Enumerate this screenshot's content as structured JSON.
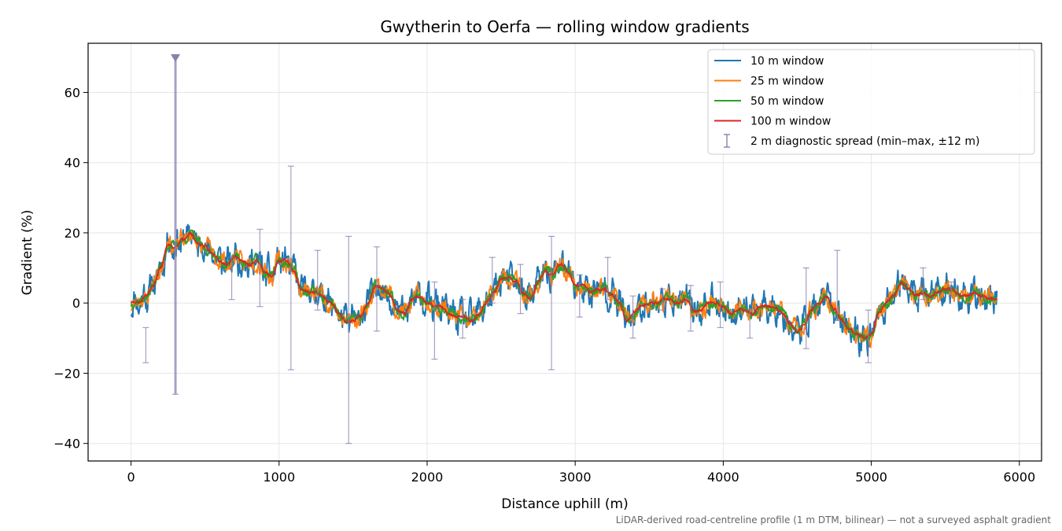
{
  "chart_data": {
    "type": "line",
    "title": "Gwytherin to Oerfa — rolling window gradients",
    "xlabel": "Distance uphill (m)",
    "ylabel": "Gradient (%)",
    "xlim": [
      -290,
      6150
    ],
    "ylim": [
      -45,
      74
    ],
    "xticks": [
      0,
      1000,
      2000,
      3000,
      4000,
      5000,
      6000
    ],
    "yticks": [
      -40,
      -20,
      0,
      20,
      40,
      60
    ],
    "xtick_labels": [
      "0",
      "1000",
      "2000",
      "3000",
      "4000",
      "5000",
      "6000"
    ],
    "ytick_labels": [
      "−40",
      "−20",
      "0",
      "20",
      "40",
      "60"
    ],
    "grid": true,
    "legend_position": "top-right",
    "footnote": "LiDAR-derived road-centreline profile (1 m DTM, bilinear) — not a surveyed asphalt gradient",
    "trend_x": [
      0,
      50,
      100,
      150,
      200,
      250,
      300,
      350,
      400,
      450,
      500,
      550,
      600,
      650,
      700,
      750,
      800,
      850,
      900,
      950,
      1000,
      1050,
      1100,
      1150,
      1200,
      1250,
      1300,
      1350,
      1400,
      1450,
      1500,
      1550,
      1600,
      1650,
      1700,
      1750,
      1800,
      1850,
      1900,
      1950,
      2000,
      2050,
      2100,
      2150,
      2200,
      2250,
      2300,
      2350,
      2400,
      2450,
      2500,
      2550,
      2600,
      2650,
      2700,
      2750,
      2800,
      2850,
      2900,
      2950,
      3000,
      3050,
      3100,
      3150,
      3200,
      3250,
      3300,
      3350,
      3400,
      3450,
      3500,
      3550,
      3600,
      3650,
      3700,
      3750,
      3800,
      3850,
      3900,
      3950,
      4000,
      4050,
      4100,
      4150,
      4200,
      4250,
      4300,
      4350,
      4400,
      4450,
      4500,
      4550,
      4600,
      4650,
      4700,
      4750,
      4800,
      4850,
      4900,
      4950,
      5000,
      5050,
      5100,
      5150,
      5200,
      5250,
      5300,
      5350,
      5400,
      5450,
      5500,
      5550,
      5600,
      5650,
      5700,
      5750,
      5800,
      5850
    ],
    "trend_y": [
      0,
      0,
      2,
      5,
      10,
      17,
      16,
      18,
      20,
      17,
      16,
      14,
      12,
      11,
      13,
      12,
      11,
      12,
      9,
      8,
      12,
      12,
      9,
      4,
      3,
      3,
      2,
      0,
      -3,
      -5,
      -5,
      -4,
      0,
      5,
      4,
      2,
      -2,
      -3,
      1,
      2,
      0,
      -1,
      -1,
      -3,
      -4,
      -4,
      -5,
      -3,
      0,
      3,
      7,
      7,
      6,
      3,
      1,
      6,
      9,
      8,
      11,
      9,
      5,
      5,
      3,
      4,
      4,
      2,
      0,
      -5,
      -3,
      -1,
      0,
      0,
      1,
      1,
      0,
      1,
      -2,
      -2,
      0,
      0,
      -1,
      -3,
      -2,
      -2,
      -3,
      -1,
      -1,
      -1,
      -3,
      -6,
      -8,
      -6,
      -2,
      0,
      2,
      -2,
      -5,
      -7,
      -9,
      -10,
      -9,
      -3,
      0,
      2,
      6,
      4,
      2,
      3,
      2,
      3,
      4,
      4,
      2,
      2,
      3,
      2,
      1,
      1
    ],
    "series": [
      {
        "name": "10 m window",
        "color": "#1f77b4",
        "noise_amp": 3.2,
        "seed": 11
      },
      {
        "name": "25 m window",
        "color": "#ff7f0e",
        "noise_amp": 2.0,
        "seed": 23
      },
      {
        "name": "50 m window",
        "color": "#2ca02c",
        "noise_amp": 1.1,
        "seed": 37
      },
      {
        "name": "100 m window",
        "color": "#d62728",
        "noise_amp": 0.35,
        "seed": 51
      }
    ],
    "diagnostic": {
      "name": "2 m diagnostic spread (min–max, ±12 m)",
      "color": "#8c7fad",
      "x": [
        100,
        300,
        680,
        870,
        1080,
        1260,
        1470,
        1660,
        2050,
        2240,
        2440,
        2630,
        2840,
        3030,
        3220,
        3390,
        3590,
        3780,
        3980,
        4180,
        4560,
        4770,
        4980,
        5350,
        5540
      ],
      "min": [
        -17,
        -26,
        1,
        -1,
        -19,
        -2,
        -40,
        -8,
        -16,
        -10,
        0,
        -3,
        -19,
        -4,
        1,
        -10,
        -2,
        -8,
        -7,
        -10,
        -13,
        -5,
        -17,
        1,
        2
      ],
      "max": [
        -7,
        70,
        13,
        21,
        39,
        15,
        19,
        16,
        6,
        1,
        13,
        11,
        19,
        8,
        13,
        2,
        4,
        5,
        6,
        -2,
        10,
        15,
        -2,
        10,
        6
      ]
    }
  }
}
